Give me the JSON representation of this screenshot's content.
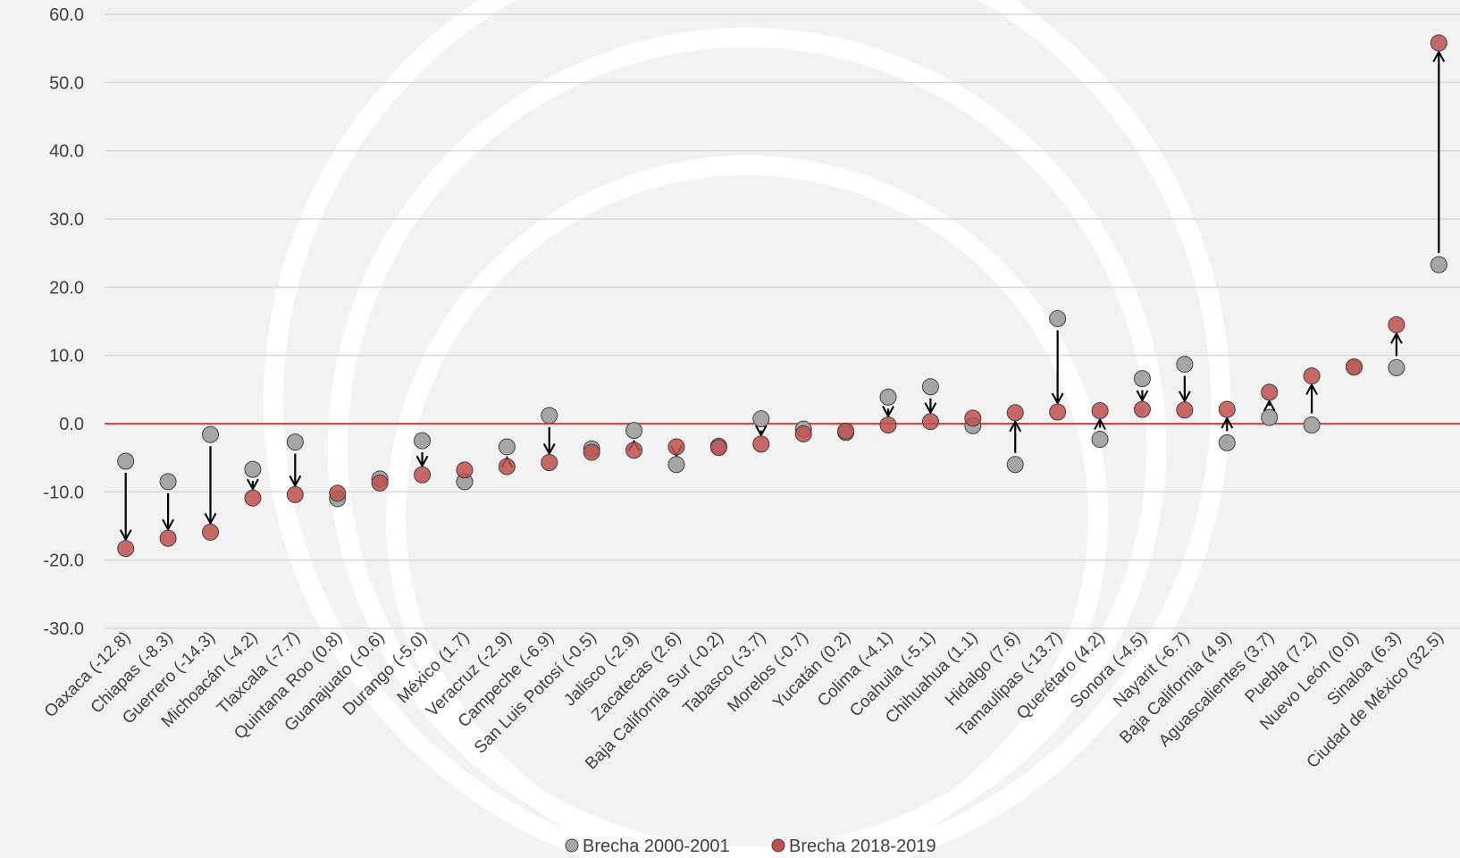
{
  "chart_data": {
    "type": "scatter",
    "title": "",
    "xlabel": "",
    "ylabel": "",
    "ylim": [
      -30,
      60
    ],
    "y_ticks": [
      "60.0",
      "50.0",
      "40.0",
      "30.0",
      "20.0",
      "10.0",
      "0.0",
      "-10.0",
      "-20.0",
      "-30.0"
    ],
    "grid": true,
    "zero_line": true,
    "legend_position": "bottom",
    "categories": [
      "Oaxaca (-12.8)",
      "Chiapas (-8.3)",
      "Guerrero (-14.3)",
      "Michoacán (-4.2)",
      "Tlaxcala (-7.7)",
      "Quintana Roo (0.8)",
      "Guanajuato (-0.6)",
      "Durango (-5.0)",
      "México (1.7)",
      "Veracruz (-2.9)",
      "Campeche (-6.9)",
      "San Luis Potosí (-0.5)",
      "Jalisco (-2.9)",
      "Zacatecas (2.6)",
      "Baja California Sur (-0.2)",
      "Tabasco (-3.7)",
      "Morelos (-0.7)",
      "Yucatán (0.2)",
      "Colima (-4.1)",
      "Coahuila (-5.1)",
      "Chihuahua (1.1)",
      "Hidalgo (7.6)",
      "Tamaulipas (-13.7)",
      "Querétaro (4.2)",
      "Sonora (-4.5)",
      "Nayarit (-6.7)",
      "Baja California (4.9)",
      "Aguascalientes (3.7)",
      "Puebla (7.2)",
      "Nuevo León (0.0)",
      "Sinaloa (6.3)",
      "Ciudad de México (32.5)"
    ],
    "series": [
      {
        "name": "Brecha 2000-2001",
        "color": "#a6a6a6",
        "values": [
          -5.5,
          -8.5,
          -1.6,
          -6.7,
          -2.7,
          -11.0,
          -8.1,
          -2.5,
          -8.5,
          -3.4,
          1.2,
          -3.7,
          -1.0,
          -6.0,
          -3.3,
          0.7,
          -0.8,
          -1.3,
          3.9,
          5.4,
          -0.3,
          -6.0,
          15.4,
          -2.3,
          6.6,
          8.7,
          -2.8,
          0.9,
          -0.2,
          8.3,
          8.2,
          23.3
        ]
      },
      {
        "name": "Brecha 2018-2019",
        "color": "#c0504d",
        "values": [
          -18.3,
          -16.8,
          -15.9,
          -10.9,
          -10.4,
          -10.2,
          -8.7,
          -7.5,
          -6.8,
          -6.3,
          -5.7,
          -4.2,
          -3.9,
          -3.4,
          -3.5,
          -3.0,
          -1.5,
          -1.1,
          -0.2,
          0.3,
          0.8,
          1.6,
          1.7,
          1.9,
          2.1,
          2.0,
          2.1,
          4.6,
          7.0,
          8.3,
          14.5,
          55.8
        ]
      }
    ]
  }
}
